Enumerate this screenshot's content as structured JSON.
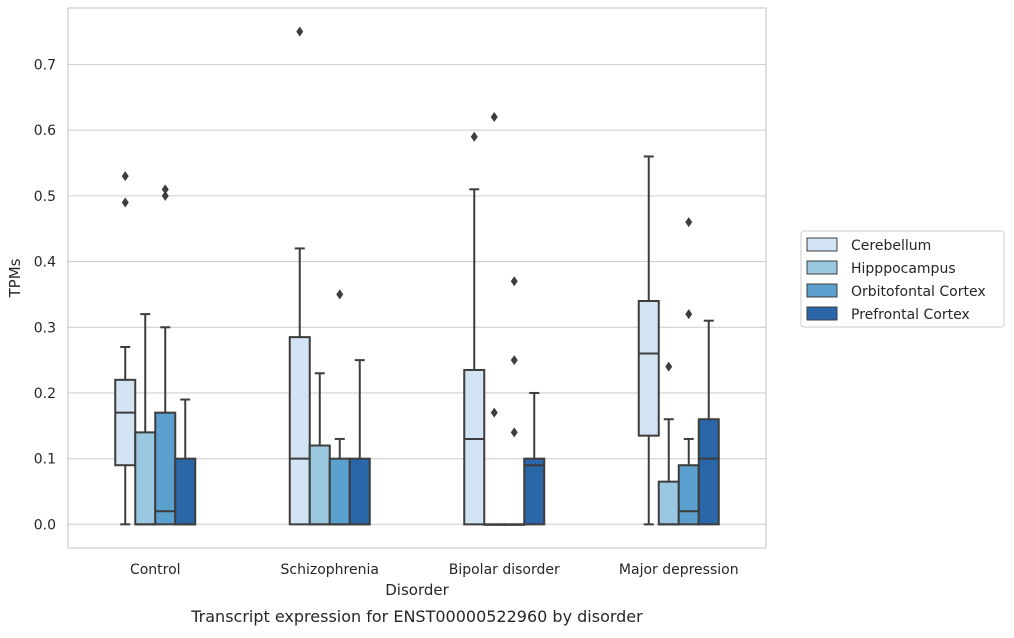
{
  "caption": "Transcript expression for ENST00000522960 by disorder",
  "chart_data": {
    "type": "box",
    "title": "",
    "xlabel": "Disorder",
    "ylabel": "TPMs",
    "ylim": [
      -0.036,
      0.786
    ],
    "yticks": [
      0.0,
      0.1,
      0.2,
      0.3,
      0.4,
      0.5,
      0.6,
      0.7
    ],
    "ytick_labels": [
      "0.0",
      "0.1",
      "0.2",
      "0.3",
      "0.4",
      "0.5",
      "0.6",
      "0.7"
    ],
    "grid": "horizontal",
    "legend_position": "right",
    "categories": [
      "Control",
      "Schizophrenia",
      "Bipolar disorder",
      "Major depression"
    ],
    "series": [
      {
        "name": "Cerebellum",
        "color": "#d2e3f3",
        "boxes": [
          {
            "whislo": 0.0,
            "q1": 0.09,
            "med": 0.17,
            "q3": 0.22,
            "whishi": 0.27,
            "fliers": [
              0.49,
              0.53
            ]
          },
          {
            "whislo": 0.0,
            "q1": 0.0,
            "med": 0.1,
            "q3": 0.285,
            "whishi": 0.42,
            "fliers": [
              0.75
            ]
          },
          {
            "whislo": 0.0,
            "q1": 0.0,
            "med": 0.13,
            "q3": 0.235,
            "whishi": 0.51,
            "fliers": [
              0.59
            ]
          },
          {
            "whislo": 0.0,
            "q1": 0.135,
            "med": 0.26,
            "q3": 0.34,
            "whishi": 0.56,
            "fliers": []
          }
        ]
      },
      {
        "name": "Hipppocampus",
        "color": "#9ac8e0",
        "boxes": [
          {
            "whislo": 0.0,
            "q1": 0.0,
            "med": 0.0,
            "q3": 0.14,
            "whishi": 0.32,
            "fliers": []
          },
          {
            "whislo": 0.0,
            "q1": 0.0,
            "med": 0.0,
            "q3": 0.12,
            "whishi": 0.23,
            "fliers": []
          },
          {
            "whislo": 0.0,
            "q1": 0.0,
            "med": 0.0,
            "q3": 0.0,
            "whishi": 0.0,
            "fliers": [
              0.62,
              0.17
            ]
          },
          {
            "whislo": 0.0,
            "q1": 0.0,
            "med": 0.0,
            "q3": 0.065,
            "whishi": 0.16,
            "fliers": [
              0.24
            ]
          }
        ]
      },
      {
        "name": "Orbitofontal Cortex",
        "color": "#5a9fcd",
        "boxes": [
          {
            "whislo": 0.0,
            "q1": 0.0,
            "med": 0.02,
            "q3": 0.17,
            "whishi": 0.3,
            "fliers": [
              0.5,
              0.51
            ]
          },
          {
            "whislo": 0.0,
            "q1": 0.0,
            "med": 0.0,
            "q3": 0.1,
            "whishi": 0.13,
            "fliers": [
              0.35
            ]
          },
          {
            "whislo": 0.0,
            "q1": 0.0,
            "med": 0.0,
            "q3": 0.0,
            "whishi": 0.0,
            "fliers": [
              0.37,
              0.25,
              0.14
            ]
          },
          {
            "whislo": 0.0,
            "q1": 0.0,
            "med": 0.02,
            "q3": 0.09,
            "whishi": 0.13,
            "fliers": [
              0.46,
              0.32
            ]
          }
        ]
      },
      {
        "name": "Prefrontal Cortex",
        "color": "#2967a9",
        "boxes": [
          {
            "whislo": 0.0,
            "q1": 0.0,
            "med": 0.0,
            "q3": 0.1,
            "whishi": 0.19,
            "fliers": []
          },
          {
            "whislo": 0.0,
            "q1": 0.0,
            "med": 0.0,
            "q3": 0.1,
            "whishi": 0.25,
            "fliers": []
          },
          {
            "whislo": 0.0,
            "q1": 0.0,
            "med": 0.09,
            "q3": 0.1,
            "whishi": 0.2,
            "fliers": []
          },
          {
            "whislo": 0.0,
            "q1": 0.0,
            "med": 0.1,
            "q3": 0.16,
            "whishi": 0.31,
            "fliers": []
          }
        ]
      }
    ]
  }
}
